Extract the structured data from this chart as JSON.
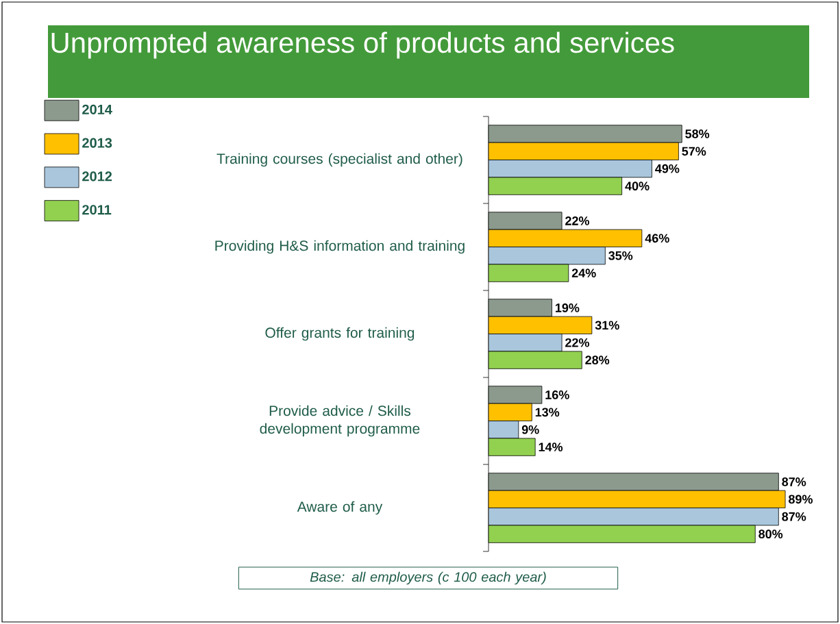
{
  "chart_data": {
    "type": "bar",
    "orientation": "horizontal",
    "title": "Unprompted awareness of products and services",
    "categories": [
      "Training courses (specialist and other)",
      "Providing H&S information and training",
      "Offer grants for training",
      "Provide advice / Skills development programme",
      "Aware of any"
    ],
    "series": [
      {
        "name": "2014",
        "color": "#8c9a8d",
        "values": [
          58,
          22,
          19,
          16,
          87
        ],
        "value_labels": [
          "58%",
          "22%",
          "19%",
          "16%",
          "87%"
        ]
      },
      {
        "name": "2013",
        "color": "#ffc000",
        "values": [
          57,
          46,
          31,
          13,
          89
        ],
        "value_labels": [
          "57%",
          "46%",
          "31%",
          "13%",
          "89%"
        ]
      },
      {
        "name": "2012",
        "color": "#a9c6dc",
        "values": [
          49,
          35,
          22,
          9,
          87
        ],
        "value_labels": [
          "49%",
          "35%",
          "22%",
          "9%",
          "87%"
        ]
      },
      {
        "name": "2011",
        "color": "#92d050",
        "values": [
          40,
          24,
          28,
          14,
          80
        ],
        "value_labels": [
          "40%",
          "24%",
          "28%",
          "14%",
          "80%"
        ]
      }
    ],
    "tick_labels": "y",
    "legend": "top left",
    "annotations": [
      "Base: all employers (c 100 each year)"
    ]
  }
}
